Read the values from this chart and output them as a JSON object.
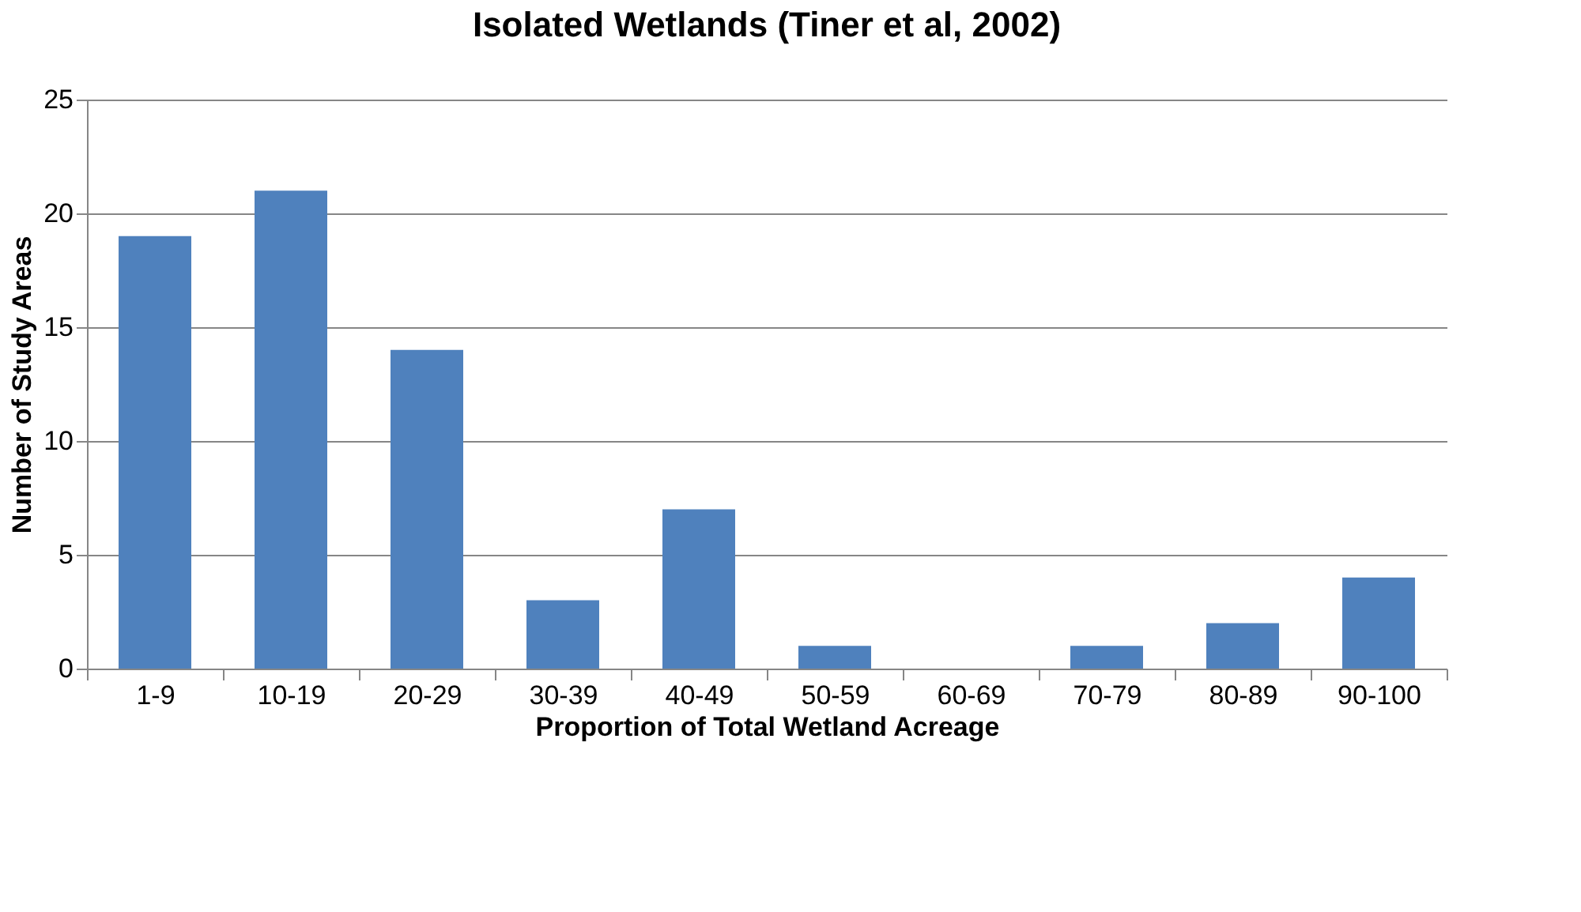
{
  "chart_data": {
    "type": "bar",
    "title": "Isolated Wetlands (Tiner et al, 2002)",
    "xlabel": "Proportion of Total Wetland Acreage",
    "ylabel": "Number of Study Areas",
    "categories": [
      "1-9",
      "10-19",
      "20-29",
      "30-39",
      "40-49",
      "50-59",
      "60-69",
      "70-79",
      "80-89",
      "90-100"
    ],
    "values": [
      19,
      21,
      14,
      3,
      7,
      1,
      0,
      1,
      2,
      4
    ],
    "color": "#4f81bd",
    "ylim": [
      0,
      25
    ],
    "yticks": [
      0,
      5,
      10,
      15,
      20,
      25
    ],
    "grid": "y"
  }
}
